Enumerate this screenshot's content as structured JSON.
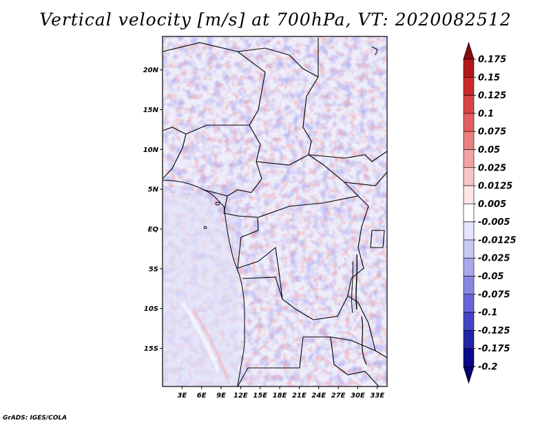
{
  "title": "Vertical velocity [m/s] at 700hPa, VT: 2020082512",
  "credit": "GrADS: IGES/COLA",
  "map": {
    "lat_labels": [
      "20N",
      "15N",
      "10N",
      "5N",
      "EQ",
      "5S",
      "10S",
      "15S"
    ],
    "lat_values": [
      20,
      15,
      10,
      5,
      0,
      -5,
      -10,
      -15
    ],
    "lon_labels": [
      "3E",
      "6E",
      "9E",
      "12E",
      "15E",
      "18E",
      "21E",
      "24E",
      "27E",
      "30E",
      "33E"
    ],
    "lon_values": [
      3,
      6,
      9,
      12,
      15,
      18,
      21,
      24,
      27,
      30,
      33
    ],
    "lon_range": [
      0,
      34.5
    ],
    "lat_range": [
      -19.8,
      24.2
    ]
  },
  "colorbar": {
    "levels": [
      "0.175",
      "0.15",
      "0.125",
      "0.1",
      "0.075",
      "0.05",
      "0.025",
      "0.0125",
      "0.005",
      "-0.005",
      "-0.0125",
      "-0.025",
      "-0.05",
      "-0.075",
      "-0.1",
      "-0.125",
      "-0.175",
      "-0.2"
    ],
    "colors": [
      "#8b0a0a",
      "#b01818",
      "#c92a2a",
      "#d94545",
      "#e26060",
      "#ea8080",
      "#f2a2a2",
      "#f8c6c6",
      "#fde6e6",
      "#ffffff",
      "#e4e4fa",
      "#c8c8f4",
      "#a9a9ec",
      "#8888e2",
      "#6666d6",
      "#4444c4",
      "#2424a8",
      "#0a0a88",
      "#000070"
    ]
  }
}
